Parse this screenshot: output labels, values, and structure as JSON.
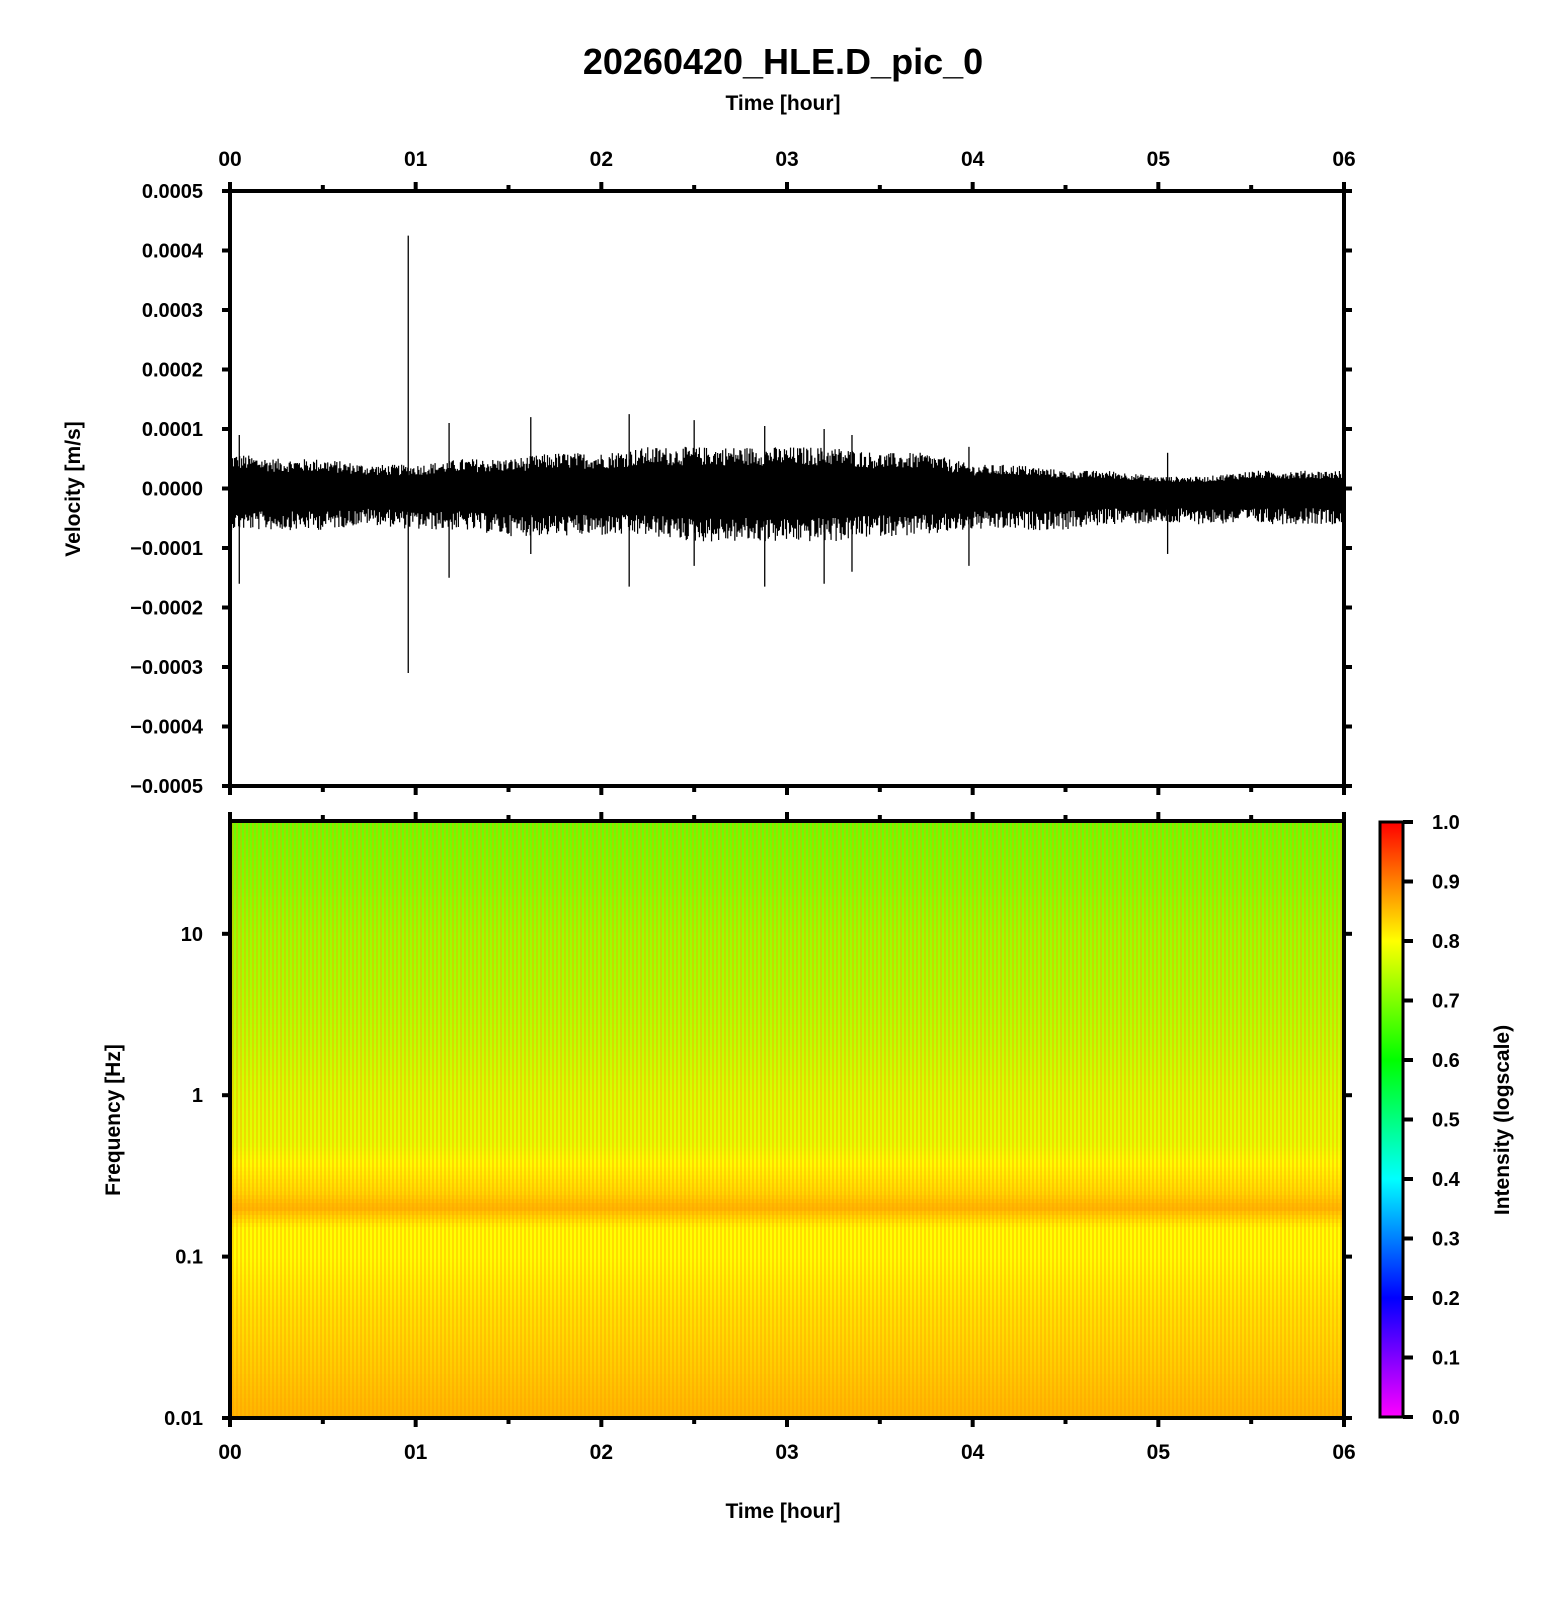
{
  "title": "20260420_HLE.D_pic_0",
  "colors": {
    "background": "#ffffff",
    "axes": "#000000",
    "waveform": "#000000",
    "colormap": [
      "#ff00ff",
      "#0000ff",
      "#00ffff",
      "#00ff00",
      "#ffff00",
      "#ff0000"
    ]
  },
  "chart_data": [
    {
      "type": "line",
      "panel": "waveform",
      "title": "20260420_HLE.D_pic_0",
      "xlabel": "Time [hour]",
      "ylabel": "Velocity [m/s]",
      "xlim": [
        0,
        6
      ],
      "ylim": [
        -0.0005,
        0.0005
      ],
      "x_ticks": [
        "00",
        "01",
        "02",
        "03",
        "04",
        "05",
        "06"
      ],
      "x_tick_values": [
        0,
        1,
        2,
        3,
        4,
        5,
        6
      ],
      "y_ticks": [
        "0.0005",
        "0.0004",
        "0.0003",
        "0.0002",
        "0.0001",
        "0.0000",
        "−0.0001",
        "−0.0002",
        "−0.0003",
        "−0.0004",
        "−0.0005"
      ],
      "y_tick_values": [
        0.0005,
        0.0004,
        0.0003,
        0.0002,
        0.0001,
        0,
        -0.0001,
        -0.0002,
        -0.0003,
        -0.0004,
        -0.0005
      ],
      "grid": false,
      "envelope": {
        "x": [
          0,
          0.25,
          0.5,
          0.75,
          1.0,
          1.25,
          1.5,
          1.75,
          2.0,
          2.25,
          2.5,
          2.75,
          3.0,
          3.25,
          3.5,
          3.75,
          4.0,
          4.25,
          4.5,
          4.75,
          5.0,
          5.25,
          5.5,
          5.75,
          6.0
        ],
        "upper": [
          6e-05,
          5e-05,
          5e-05,
          4e-05,
          4e-05,
          5e-05,
          5e-05,
          6e-05,
          6e-05,
          7e-05,
          7e-05,
          7e-05,
          7e-05,
          7e-05,
          6e-05,
          6e-05,
          4e-05,
          4e-05,
          3e-05,
          3e-05,
          2e-05,
          2e-05,
          3e-05,
          3e-05,
          3e-05
        ],
        "lower": [
          -7e-05,
          -7e-05,
          -7e-05,
          -6e-05,
          -7e-05,
          -7e-05,
          -8e-05,
          -8e-05,
          -8e-05,
          -8e-05,
          -9e-05,
          -9e-05,
          -9e-05,
          -9e-05,
          -8e-05,
          -8e-05,
          -7e-05,
          -7e-05,
          -7e-05,
          -6e-05,
          -6e-05,
          -6e-05,
          -6e-05,
          -6e-05,
          -6e-05
        ]
      },
      "spikes": [
        {
          "x": 0.96,
          "ymax": 0.000425,
          "ymin": -0.00031
        },
        {
          "x": 0.05,
          "ymax": 9e-05,
          "ymin": -0.00016
        },
        {
          "x": 1.18,
          "ymax": 0.00011,
          "ymin": -0.00015
        },
        {
          "x": 1.62,
          "ymax": 0.00012,
          "ymin": -0.00011
        },
        {
          "x": 2.15,
          "ymax": 0.000125,
          "ymin": -0.000165
        },
        {
          "x": 2.5,
          "ymax": 0.000115,
          "ymin": -0.00013
        },
        {
          "x": 2.88,
          "ymax": 0.000105,
          "ymin": -0.000165
        },
        {
          "x": 3.2,
          "ymax": 0.0001,
          "ymin": -0.00016
        },
        {
          "x": 3.35,
          "ymax": 9e-05,
          "ymin": -0.00014
        },
        {
          "x": 3.98,
          "ymax": 7e-05,
          "ymin": -0.00013
        },
        {
          "x": 5.05,
          "ymax": 6e-05,
          "ymin": -0.00011
        }
      ]
    },
    {
      "type": "heatmap",
      "panel": "spectrogram",
      "xlabel": "Time [hour]",
      "ylabel": "Frequency [Hz]",
      "xlim": [
        0,
        6
      ],
      "ylim": [
        0.01,
        50
      ],
      "y_scale": "log",
      "x_ticks": [
        "00",
        "01",
        "02",
        "03",
        "04",
        "05",
        "06"
      ],
      "x_tick_values": [
        0,
        1,
        2,
        3,
        4,
        5,
        6
      ],
      "y_ticks": [
        "10",
        "1",
        "0.1",
        "0.01"
      ],
      "y_tick_values": [
        10,
        1,
        0.1,
        0.01
      ],
      "colorbar": {
        "label": "Intensity (logscale)",
        "range": [
          0,
          1
        ],
        "ticks": [
          "1.0",
          "0.9",
          "0.8",
          "0.7",
          "0.6",
          "0.5",
          "0.4",
          "0.3",
          "0.2",
          "0.1",
          "0.0"
        ],
        "tick_values": [
          1.0,
          0.9,
          0.8,
          0.7,
          0.6,
          0.5,
          0.4,
          0.3,
          0.2,
          0.1,
          0.0
        ]
      },
      "intensity_profile": {
        "frequency_hz": [
          50,
          20,
          10,
          5,
          2,
          1,
          0.5,
          0.25,
          0.2,
          0.15,
          0.1,
          0.05,
          0.02,
          0.01
        ],
        "intensity": [
          0.68,
          0.7,
          0.72,
          0.73,
          0.75,
          0.77,
          0.78,
          0.83,
          0.86,
          0.8,
          0.8,
          0.82,
          0.84,
          0.86
        ]
      }
    }
  ]
}
